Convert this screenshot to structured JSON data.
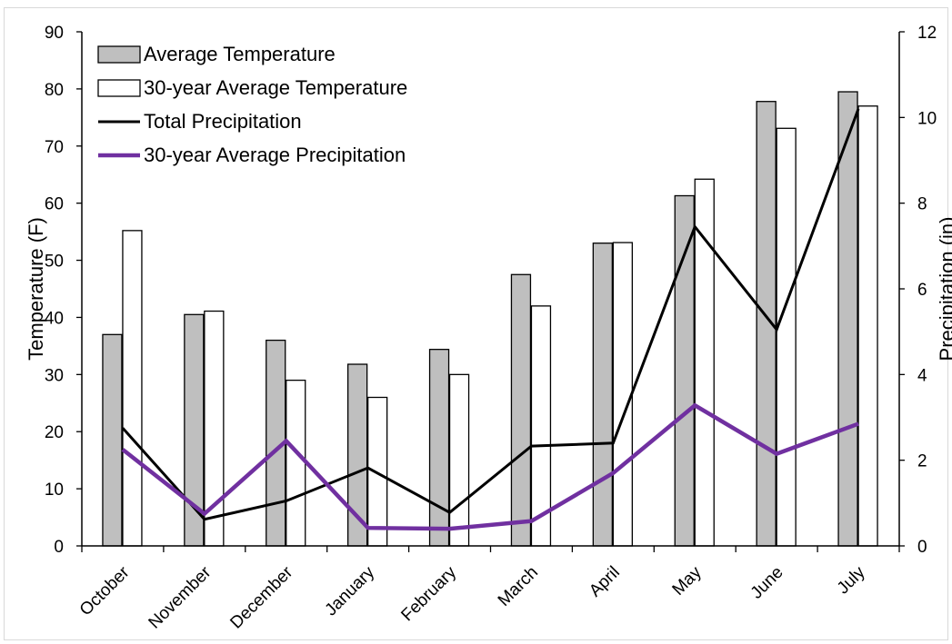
{
  "chart_data": {
    "type": "bar",
    "title": "",
    "categories": [
      "October",
      "November",
      "December",
      "January",
      "February",
      "March",
      "April",
      "May",
      "June",
      "July"
    ],
    "ylabel": "Temperature (F)",
    "y2label": "Precipitation (in)",
    "ylim": [
      0,
      90
    ],
    "y_ticks": [
      0,
      10,
      20,
      30,
      40,
      50,
      60,
      70,
      80,
      90
    ],
    "y2lim": [
      0,
      12
    ],
    "y2_ticks": [
      0,
      2,
      4,
      6,
      8,
      10,
      12
    ],
    "legend_position": "top-left",
    "grid": false,
    "series": [
      {
        "name": "Average Temperature",
        "type": "bar",
        "axis": "left",
        "color": "#bfbfbf",
        "values": [
          37,
          40.5,
          36,
          31.8,
          34.4,
          47.5,
          53,
          61.3,
          77.8,
          79.5
        ]
      },
      {
        "name": "30-year Average Temperature",
        "type": "bar",
        "axis": "left",
        "color": "#ffffff",
        "values": [
          55.2,
          41.1,
          29,
          26,
          30,
          42,
          53.1,
          64.2,
          73.1,
          77
        ]
      },
      {
        "name": "Total Precipitation",
        "type": "line",
        "axis": "right",
        "color": "#000000",
        "values": [
          2.75,
          0.62,
          1.05,
          1.82,
          0.78,
          2.33,
          2.4,
          7.45,
          5.05,
          10.2
        ]
      },
      {
        "name": "30-year Average Precipitation",
        "type": "line",
        "axis": "right",
        "color": "#7030a0",
        "values": [
          2.25,
          0.75,
          2.45,
          0.42,
          0.4,
          0.58,
          1.7,
          3.28,
          2.15,
          2.85
        ]
      }
    ]
  }
}
